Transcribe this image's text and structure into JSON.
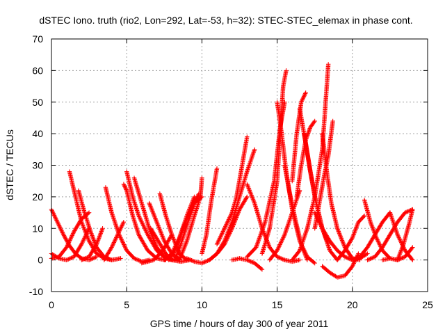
{
  "chart_data": {
    "type": "scatter",
    "title": "dSTEC Iono. truth (rio2, Lon=292, Lat=-53, h=32): STEC-STEC_elemax in phase cont.",
    "xlabel": "GPS time / hours of day 300 of year 2011",
    "ylabel": "dSTEC  / TECUs",
    "xlim": [
      0,
      25
    ],
    "ylim": [
      -10,
      70
    ],
    "xticks": [
      0,
      5,
      10,
      15,
      20,
      25
    ],
    "yticks": [
      -10,
      0,
      10,
      20,
      30,
      40,
      50,
      60,
      70
    ],
    "grid": true,
    "marker": "+",
    "color": "#ff0000",
    "arcs": [
      {
        "x": [
          0.0,
          0.4,
          0.8,
          1.2,
          1.6,
          2.0,
          2.5,
          3.0
        ],
        "y": [
          16,
          12,
          8,
          4.5,
          2,
          0.5,
          0,
          1
        ]
      },
      {
        "x": [
          0.0,
          0.5,
          1.0,
          1.5,
          2.0,
          2.5
        ],
        "y": [
          2,
          0.5,
          0,
          1,
          5,
          10
        ]
      },
      {
        "x": [
          0.0,
          0.5,
          1.0,
          1.5,
          2.0,
          2.5
        ],
        "y": [
          0.5,
          1,
          4,
          9,
          13,
          15
        ]
      },
      {
        "x": [
          1.2,
          1.6,
          2.0,
          2.5,
          3.0,
          3.5,
          4.0
        ],
        "y": [
          28,
          20,
          12,
          6,
          2,
          0.5,
          0
        ]
      },
      {
        "x": [
          1.8,
          2.2,
          2.6,
          3.0,
          3.5,
          4.0,
          4.6
        ],
        "y": [
          22,
          15,
          9,
          4,
          1,
          0,
          0.5
        ]
      },
      {
        "x": [
          2.0,
          2.5,
          3.0,
          3.4
        ],
        "y": [
          0,
          1,
          5,
          10
        ]
      },
      {
        "x": [
          3.6,
          4.0,
          4.5,
          5.0,
          5.5,
          6.0,
          6.5
        ],
        "y": [
          23,
          15,
          8,
          3,
          0.5,
          -0.5,
          0
        ]
      },
      {
        "x": [
          3.5,
          4.0,
          4.4,
          4.8
        ],
        "y": [
          0,
          4,
          8,
          12
        ]
      },
      {
        "x": [
          4.8,
          5.0,
          5.4,
          5.8,
          6.4,
          7.0,
          7.6
        ],
        "y": [
          24,
          22,
          14,
          8,
          3,
          0.5,
          0
        ]
      },
      {
        "x": [
          5.0,
          5.4,
          5.8,
          6.4,
          7.0,
          7.6,
          8.0
        ],
        "y": [
          28,
          20,
          14,
          8,
          3,
          0.5,
          0
        ]
      },
      {
        "x": [
          5.5,
          6.0,
          6.5,
          7.0,
          7.5,
          8.0,
          8.5
        ],
        "y": [
          26,
          18,
          10,
          4,
          1,
          0,
          0.5
        ]
      },
      {
        "x": [
          6.5,
          7.0,
          7.5,
          8.0,
          8.5
        ],
        "y": [
          18,
          12,
          6,
          2,
          0
        ]
      },
      {
        "x": [
          6.6,
          7.1,
          7.6,
          8.0,
          8.6,
          9.2
        ],
        "y": [
          10,
          6,
          2,
          0,
          -0.5,
          0
        ]
      },
      {
        "x": [
          7.2,
          7.6,
          8.0,
          8.5,
          9.0
        ],
        "y": [
          21,
          14,
          8,
          2,
          0
        ]
      },
      {
        "x": [
          6.0,
          6.8,
          7.4,
          8.0
        ],
        "y": [
          -1,
          0,
          3,
          8
        ]
      },
      {
        "x": [
          7.5,
          8.0,
          8.5,
          9.0,
          9.5
        ],
        "y": [
          0,
          2,
          7,
          14,
          20
        ]
      },
      {
        "x": [
          7.8,
          8.2,
          8.6,
          9.0,
          9.5,
          10.0
        ],
        "y": [
          0,
          3,
          8,
          13,
          18,
          20
        ]
      },
      {
        "x": [
          8.2,
          8.6,
          9.0,
          9.5,
          9.8
        ],
        "y": [
          0,
          5,
          11,
          18,
          21
        ]
      },
      {
        "x": [
          8.5,
          9.0,
          9.5,
          9.9,
          10.0
        ],
        "y": [
          0,
          6,
          14,
          20,
          26
        ]
      },
      {
        "x": [
          10.0,
          10.3,
          10.6,
          11.0
        ],
        "y": [
          2,
          8,
          18,
          29
        ]
      },
      {
        "x": [
          9.0,
          9.5,
          10.0,
          10.5,
          11.0,
          11.5
        ],
        "y": [
          0.5,
          -0.5,
          -1,
          0,
          2,
          5
        ]
      },
      {
        "x": [
          11.0,
          11.5,
          12.0,
          12.3,
          12.6,
          13.0
        ],
        "y": [
          5,
          10,
          15,
          20,
          28,
          39
        ]
      },
      {
        "x": [
          10.5,
          11.0,
          11.5,
          12.0,
          12.5,
          13.0,
          13.5
        ],
        "y": [
          0,
          2,
          6,
          12,
          20,
          28,
          35
        ]
      },
      {
        "x": [
          11.0,
          11.5,
          12.0,
          12.5,
          13.0
        ],
        "y": [
          2,
          5,
          10,
          16,
          20
        ]
      },
      {
        "x": [
          12.0,
          12.5,
          13.0,
          13.5,
          14.0
        ],
        "y": [
          0,
          0.5,
          0,
          -1,
          -3
        ]
      },
      {
        "x": [
          13.0,
          13.5,
          14.0,
          14.5,
          15.0,
          15.5,
          16.0,
          16.5
        ],
        "y": [
          24,
          18,
          10,
          4,
          1,
          0,
          -0.5,
          0
        ]
      },
      {
        "x": [
          14.0,
          14.5,
          15.0,
          15.2,
          15.4,
          15.6
        ],
        "y": [
          2,
          10,
          25,
          40,
          55,
          60
        ]
      },
      {
        "x": [
          13.0,
          13.6,
          14.2,
          14.8,
          15.2,
          15.5
        ],
        "y": [
          1,
          4,
          12,
          25,
          42,
          50
        ]
      },
      {
        "x": [
          15.0,
          15.3,
          15.6,
          16.0,
          16.5,
          17.0,
          17.5
        ],
        "y": [
          50,
          40,
          28,
          16,
          6,
          1,
          -1
        ]
      },
      {
        "x": [
          15.5,
          15.8,
          16.2,
          16.6,
          17.0
        ],
        "y": [
          30,
          22,
          13,
          5,
          0
        ]
      },
      {
        "x": [
          14.5,
          15.0,
          15.5,
          16.0,
          16.5
        ],
        "y": [
          0,
          3,
          8,
          15,
          22
        ]
      },
      {
        "x": [
          16.0,
          16.3,
          16.6,
          16.9
        ],
        "y": [
          25,
          40,
          50,
          53
        ]
      },
      {
        "x": [
          16.3,
          16.6,
          16.9,
          17.2,
          17.5
        ],
        "y": [
          20,
          30,
          38,
          42,
          44
        ]
      },
      {
        "x": [
          16.5,
          17.0,
          17.5,
          18.0,
          18.5,
          19.0
        ],
        "y": [
          48,
          34,
          20,
          10,
          3,
          0
        ]
      },
      {
        "x": [
          16.8,
          17.2,
          17.6,
          18.0,
          18.4
        ],
        "y": [
          40,
          28,
          18,
          10,
          5
        ]
      },
      {
        "x": [
          16.0,
          16.5,
          17.0,
          17.5,
          18.0,
          18.4
        ],
        "y": [
          0,
          3,
          10,
          20,
          35,
          62
        ]
      },
      {
        "x": [
          17.5,
          17.8,
          18.1,
          18.4,
          18.7
        ],
        "y": [
          10,
          18,
          26,
          33,
          44
        ]
      },
      {
        "x": [
          18.0,
          18.3,
          18.6,
          19.0,
          19.5,
          20.0,
          20.5
        ],
        "y": [
          40,
          28,
          18,
          10,
          4,
          0.5,
          0
        ]
      },
      {
        "x": [
          17.5,
          18.0,
          18.5,
          19.0,
          19.5,
          20.0,
          20.5,
          21.0
        ],
        "y": [
          15,
          10,
          6,
          3,
          1,
          0,
          0.5,
          2
        ]
      },
      {
        "x": [
          18.0,
          18.5,
          19.0,
          19.5,
          20.0,
          20.4
        ],
        "y": [
          -2,
          -4,
          -5.5,
          -5,
          -2,
          2
        ]
      },
      {
        "x": [
          19.0,
          19.5,
          20.0,
          20.4,
          20.8
        ],
        "y": [
          0,
          3,
          7,
          12,
          14
        ]
      },
      {
        "x": [
          20.8,
          21.2,
          21.6,
          22.0,
          22.5,
          23.0
        ],
        "y": [
          19,
          12,
          7,
          3,
          0.5,
          0
        ]
      },
      {
        "x": [
          20.0,
          20.5,
          21.0,
          21.5,
          22.0,
          22.5
        ],
        "y": [
          0,
          1,
          4,
          8,
          12,
          15
        ]
      },
      {
        "x": [
          21.0,
          21.5,
          22.0,
          22.5,
          23.0,
          23.5,
          24.0
        ],
        "y": [
          0,
          1,
          4,
          8,
          12,
          15,
          16
        ]
      },
      {
        "x": [
          22.5,
          23.0,
          23.5,
          24.0
        ],
        "y": [
          15,
          8,
          3,
          0
        ]
      },
      {
        "x": [
          22.0,
          22.5,
          23.0,
          23.5,
          24.0
        ],
        "y": [
          0,
          0.5,
          0,
          1,
          4
        ]
      },
      {
        "x": [
          23.0,
          23.4,
          23.8,
          24.0
        ],
        "y": [
          0,
          5,
          12,
          16
        ]
      }
    ]
  }
}
